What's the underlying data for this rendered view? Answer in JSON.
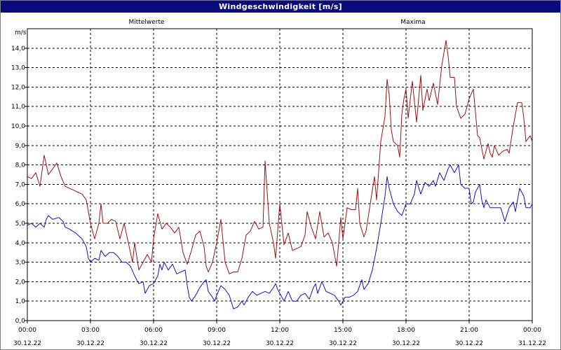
{
  "window": {
    "title": "Windgeschwindigkeit [m/s]"
  },
  "colors": {
    "title_bar": "#0a0a78",
    "mittelwerte": "#1010d0",
    "maxima": "#a01010",
    "grid": "#000000"
  },
  "chart_data": {
    "type": "line",
    "title": "Windgeschwindigkeit [m/s]",
    "ylabel": "m/s",
    "xlabel": "",
    "ylim": [
      0,
      15
    ],
    "xlim": [
      0,
      24
    ],
    "grid": true,
    "legend_placement": "top",
    "y_ticks": [
      "0,0",
      "1,0",
      "2,0",
      "3,0",
      "4,0",
      "5,0",
      "6,0",
      "7,0",
      "8,0",
      "9,0",
      "10,0",
      "11,0",
      "12,0",
      "13,0",
      "14,0"
    ],
    "x_ticks": [
      {
        "time": "00:00",
        "date": "30.12.22"
      },
      {
        "time": "03:00",
        "date": "30.12.22"
      },
      {
        "time": "06:00",
        "date": "30.12.22"
      },
      {
        "time": "09:00",
        "date": "30.12.22"
      },
      {
        "time": "12:00",
        "date": "30.12.22"
      },
      {
        "time": "15:00",
        "date": "30.12.22"
      },
      {
        "time": "18:00",
        "date": "30.12.22"
      },
      {
        "time": "21:00",
        "date": "30.12.22"
      },
      {
        "time": "00:00",
        "date": "31.12.22"
      }
    ],
    "series": [
      {
        "name": "Mittelwerte",
        "points": [
          [
            0,
            4.9
          ],
          [
            0.2,
            5.0
          ],
          [
            0.4,
            4.8
          ],
          [
            0.6,
            5.0
          ],
          [
            0.8,
            4.8
          ],
          [
            0.9,
            5.2
          ],
          [
            1.0,
            5.4
          ],
          [
            1.2,
            5.2
          ],
          [
            1.5,
            5.3
          ],
          [
            1.7,
            5.1
          ],
          [
            1.8,
            4.8
          ],
          [
            2.0,
            4.7
          ],
          [
            2.3,
            4.5
          ],
          [
            2.5,
            4.3
          ],
          [
            2.6,
            4.2
          ],
          [
            2.8,
            3.8
          ],
          [
            2.9,
            3.2
          ],
          [
            3.0,
            3.0
          ],
          [
            3.2,
            3.2
          ],
          [
            3.4,
            3.1
          ],
          [
            3.5,
            3.6
          ],
          [
            3.7,
            3.3
          ],
          [
            3.9,
            3.5
          ],
          [
            4.1,
            3.5
          ],
          [
            4.3,
            3.3
          ],
          [
            4.5,
            3.0
          ],
          [
            4.7,
            3.0
          ],
          [
            4.9,
            2.8
          ],
          [
            5.1,
            2.3
          ],
          [
            5.3,
            1.9
          ],
          [
            5.5,
            2.0
          ],
          [
            5.6,
            1.4
          ],
          [
            5.8,
            1.8
          ],
          [
            6.0,
            1.9
          ],
          [
            6.1,
            2.1
          ],
          [
            6.2,
            2.3
          ],
          [
            6.3,
            2.9
          ],
          [
            6.4,
            2.6
          ],
          [
            6.5,
            3.0
          ],
          [
            6.7,
            2.6
          ],
          [
            6.9,
            2.9
          ],
          [
            7.1,
            2.4
          ],
          [
            7.3,
            2.5
          ],
          [
            7.5,
            2.6
          ],
          [
            7.6,
            1.8
          ],
          [
            7.7,
            1.2
          ],
          [
            7.8,
            1.0
          ],
          [
            8.0,
            1.3
          ],
          [
            8.2,
            1.7
          ],
          [
            8.4,
            2.0
          ],
          [
            8.5,
            2.1
          ],
          [
            8.6,
            1.5
          ],
          [
            8.8,
            1.2
          ],
          [
            8.9,
            1.0
          ],
          [
            9.0,
            1.3
          ],
          [
            9.2,
            1.8
          ],
          [
            9.4,
            1.6
          ],
          [
            9.6,
            1.3
          ],
          [
            9.8,
            0.6
          ],
          [
            10.0,
            0.7
          ],
          [
            10.2,
            1.0
          ],
          [
            10.3,
            0.8
          ],
          [
            10.5,
            1.2
          ],
          [
            10.7,
            1.5
          ],
          [
            10.9,
            1.3
          ],
          [
            11.1,
            1.4
          ],
          [
            11.3,
            1.5
          ],
          [
            11.5,
            1.4
          ],
          [
            11.7,
            1.7
          ],
          [
            11.8,
            1.9
          ],
          [
            11.9,
            1.6
          ],
          [
            12.0,
            1.4
          ],
          [
            12.1,
            1.2
          ],
          [
            12.2,
            1.0
          ],
          [
            12.4,
            1.5
          ],
          [
            12.6,
            1.0
          ],
          [
            12.8,
            1.0
          ],
          [
            13.0,
            1.3
          ],
          [
            13.2,
            1.4
          ],
          [
            13.4,
            1.1
          ],
          [
            13.6,
            1.7
          ],
          [
            13.7,
            1.9
          ],
          [
            13.8,
            1.4
          ],
          [
            14.0,
            2.0
          ],
          [
            14.2,
            1.5
          ],
          [
            14.4,
            1.4
          ],
          [
            14.6,
            1.3
          ],
          [
            14.8,
            1.0
          ],
          [
            14.9,
            0.8
          ],
          [
            15.1,
            1.2
          ],
          [
            15.3,
            1.2
          ],
          [
            15.5,
            1.3
          ],
          [
            15.7,
            1.5
          ],
          [
            15.9,
            2.1
          ],
          [
            16.0,
            1.6
          ],
          [
            16.2,
            1.9
          ],
          [
            16.4,
            2.6
          ],
          [
            16.6,
            3.7
          ],
          [
            16.8,
            5.0
          ],
          [
            17.0,
            6.4
          ],
          [
            17.1,
            7.4
          ],
          [
            17.2,
            6.8
          ],
          [
            17.4,
            6.0
          ],
          [
            17.6,
            5.6
          ],
          [
            17.8,
            5.4
          ],
          [
            18.0,
            6.0
          ],
          [
            18.2,
            6.0
          ],
          [
            18.4,
            6.5
          ],
          [
            18.5,
            7.2
          ],
          [
            18.7,
            6.5
          ],
          [
            18.9,
            7.1
          ],
          [
            19.1,
            6.9
          ],
          [
            19.3,
            7.2
          ],
          [
            19.4,
            6.9
          ],
          [
            19.6,
            7.6
          ],
          [
            19.8,
            7.2
          ],
          [
            20.0,
            7.8
          ],
          [
            20.1,
            8.0
          ],
          [
            20.3,
            7.6
          ],
          [
            20.5,
            8.0
          ],
          [
            20.6,
            7.0
          ],
          [
            20.8,
            6.8
          ],
          [
            21.0,
            6.8
          ],
          [
            21.1,
            6.0
          ],
          [
            21.2,
            6.1
          ],
          [
            21.3,
            6.6
          ],
          [
            21.5,
            7.0
          ],
          [
            21.6,
            6.2
          ],
          [
            21.7,
            5.8
          ],
          [
            21.8,
            6.2
          ],
          [
            22.0,
            5.8
          ],
          [
            22.3,
            5.8
          ],
          [
            22.5,
            5.8
          ],
          [
            22.7,
            5.1
          ],
          [
            22.9,
            5.8
          ],
          [
            23.1,
            6.1
          ],
          [
            23.2,
            5.6
          ],
          [
            23.4,
            6.8
          ],
          [
            23.6,
            6.4
          ],
          [
            23.7,
            5.8
          ],
          [
            23.9,
            5.8
          ],
          [
            24.0,
            6.0
          ]
        ]
      },
      {
        "name": "Maxima",
        "points": [
          [
            0,
            7.4
          ],
          [
            0.2,
            7.3
          ],
          [
            0.4,
            7.6
          ],
          [
            0.6,
            6.9
          ],
          [
            0.8,
            8.5
          ],
          [
            1.0,
            7.5
          ],
          [
            1.2,
            7.8
          ],
          [
            1.4,
            8.1
          ],
          [
            1.6,
            7.4
          ],
          [
            1.8,
            6.9
          ],
          [
            2.0,
            6.8
          ],
          [
            2.2,
            6.7
          ],
          [
            2.4,
            6.6
          ],
          [
            2.6,
            6.5
          ],
          [
            2.8,
            6.2
          ],
          [
            3.0,
            5.0
          ],
          [
            3.2,
            4.2
          ],
          [
            3.4,
            5.0
          ],
          [
            3.5,
            6.0
          ],
          [
            3.6,
            5.0
          ],
          [
            3.8,
            5.0
          ],
          [
            4.0,
            5.2
          ],
          [
            4.2,
            5.1
          ],
          [
            4.4,
            4.2
          ],
          [
            4.6,
            5.0
          ],
          [
            4.8,
            4.0
          ],
          [
            5.0,
            3.0
          ],
          [
            5.1,
            4.0
          ],
          [
            5.3,
            2.6
          ],
          [
            5.5,
            3.0
          ],
          [
            5.7,
            3.4
          ],
          [
            5.9,
            3.0
          ],
          [
            6.0,
            4.2
          ],
          [
            6.2,
            5.5
          ],
          [
            6.4,
            4.7
          ],
          [
            6.6,
            5.0
          ],
          [
            6.8,
            4.8
          ],
          [
            7.0,
            4.5
          ],
          [
            7.2,
            4.8
          ],
          [
            7.4,
            3.5
          ],
          [
            7.6,
            2.9
          ],
          [
            7.8,
            3.6
          ],
          [
            8.0,
            4.4
          ],
          [
            8.2,
            4.6
          ],
          [
            8.4,
            3.8
          ],
          [
            8.5,
            2.8
          ],
          [
            8.6,
            2.5
          ],
          [
            8.8,
            3.0
          ],
          [
            9.0,
            4.0
          ],
          [
            9.2,
            5.2
          ],
          [
            9.4,
            3.0
          ],
          [
            9.6,
            2.4
          ],
          [
            9.8,
            2.5
          ],
          [
            10.0,
            2.5
          ],
          [
            10.2,
            3.2
          ],
          [
            10.4,
            4.4
          ],
          [
            10.6,
            4.6
          ],
          [
            10.8,
            5.1
          ],
          [
            11.0,
            4.7
          ],
          [
            11.2,
            4.8
          ],
          [
            11.3,
            8.2
          ],
          [
            11.5,
            5.0
          ],
          [
            11.7,
            4.0
          ],
          [
            11.8,
            3.2
          ],
          [
            12.0,
            6.0
          ],
          [
            12.2,
            3.9
          ],
          [
            12.4,
            4.5
          ],
          [
            12.6,
            3.6
          ],
          [
            12.8,
            3.7
          ],
          [
            13.0,
            3.8
          ],
          [
            13.2,
            4.4
          ],
          [
            13.3,
            5.6
          ],
          [
            13.5,
            4.8
          ],
          [
            13.7,
            4.2
          ],
          [
            13.9,
            5.6
          ],
          [
            14.1,
            4.3
          ],
          [
            14.3,
            4.5
          ],
          [
            14.5,
            4.0
          ],
          [
            14.7,
            2.8
          ],
          [
            14.8,
            4.0
          ],
          [
            14.9,
            5.3
          ],
          [
            15.0,
            4.2
          ],
          [
            15.2,
            5.8
          ],
          [
            15.4,
            5.7
          ],
          [
            15.6,
            5.7
          ],
          [
            15.7,
            6.8
          ],
          [
            15.8,
            5.0
          ],
          [
            16.0,
            4.3
          ],
          [
            16.1,
            4.6
          ],
          [
            16.3,
            6.0
          ],
          [
            16.5,
            7.4
          ],
          [
            16.6,
            6.2
          ],
          [
            16.8,
            9.2
          ],
          [
            17.0,
            10.5
          ],
          [
            17.1,
            12.4
          ],
          [
            17.2,
            11.6
          ],
          [
            17.3,
            9.8
          ],
          [
            17.4,
            9.2
          ],
          [
            17.6,
            9.0
          ],
          [
            17.7,
            8.4
          ],
          [
            17.8,
            10.6
          ],
          [
            17.9,
            11.4
          ],
          [
            18.0,
            11.9
          ],
          [
            18.1,
            10.4
          ],
          [
            18.3,
            12.3
          ],
          [
            18.5,
            10.2
          ],
          [
            18.7,
            12.6
          ],
          [
            18.8,
            10.8
          ],
          [
            19.0,
            11.9
          ],
          [
            19.1,
            11.3
          ],
          [
            19.3,
            12.2
          ],
          [
            19.5,
            11.1
          ],
          [
            19.7,
            13.1
          ],
          [
            19.9,
            14.4
          ],
          [
            20.0,
            13.6
          ],
          [
            20.1,
            12.5
          ],
          [
            20.3,
            12.5
          ],
          [
            20.4,
            11.0
          ],
          [
            20.6,
            10.4
          ],
          [
            20.8,
            10.6
          ],
          [
            21.0,
            11.4
          ],
          [
            21.2,
            11.9
          ],
          [
            21.4,
            9.5
          ],
          [
            21.5,
            9.4
          ],
          [
            21.7,
            8.3
          ],
          [
            21.9,
            9.1
          ],
          [
            22.0,
            8.6
          ],
          [
            22.1,
            8.4
          ],
          [
            22.2,
            9.0
          ],
          [
            22.4,
            8.5
          ],
          [
            22.6,
            8.7
          ],
          [
            22.8,
            8.8
          ],
          [
            22.9,
            8.6
          ],
          [
            23.1,
            10.0
          ],
          [
            23.3,
            11.2
          ],
          [
            23.5,
            11.2
          ],
          [
            23.6,
            10.4
          ],
          [
            23.7,
            9.2
          ],
          [
            23.9,
            9.5
          ],
          [
            24.0,
            9.2
          ]
        ]
      }
    ]
  }
}
